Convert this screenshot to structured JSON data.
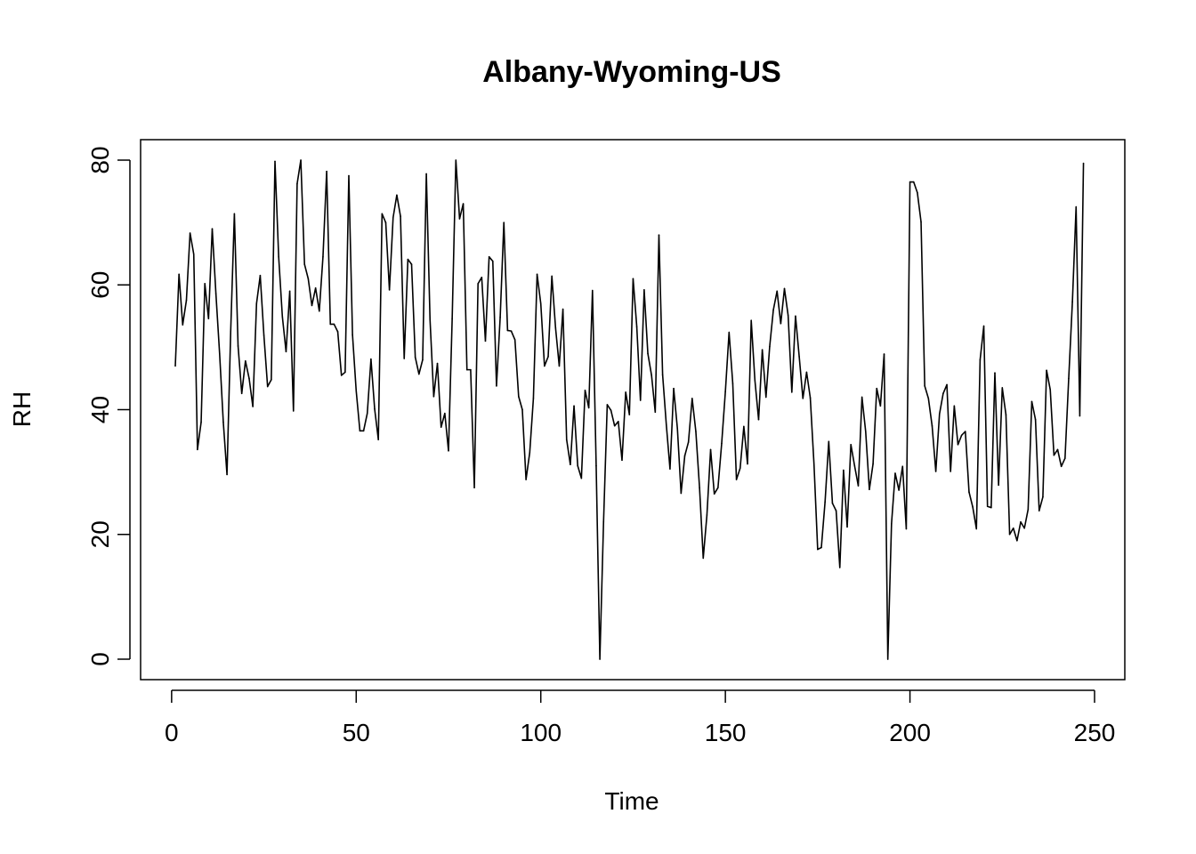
{
  "chart_data": {
    "type": "line",
    "title": "Albany-Wyoming-US",
    "xlabel": "Time",
    "ylabel": "RH",
    "xlim": [
      1,
      248
    ],
    "ylim": [
      0,
      80
    ],
    "x_ticks": [
      0,
      50,
      100,
      150,
      200,
      250
    ],
    "y_ticks": [
      0,
      20,
      40,
      60,
      80
    ],
    "grid": false,
    "legend": "none",
    "series": [
      {
        "x_start": 1,
        "values": [
          47,
          61.7,
          53.6,
          57.5,
          68.3,
          64.9,
          33.6,
          38,
          60.2,
          54.6,
          69,
          58.6,
          49,
          38,
          29.6,
          52.5,
          71.4,
          50.2,
          42.6,
          47.8,
          45,
          40.5,
          57,
          61.5,
          51.9,
          43.7,
          44.8,
          79.8,
          64.5,
          54.9,
          49.3,
          59,
          39.8,
          76.2,
          80,
          63.3,
          61,
          56.7,
          59.5,
          55.8,
          64.5,
          78.2,
          53.7,
          53.7,
          52.5,
          45.5,
          46,
          77.5,
          52,
          43,
          36.6,
          36.6,
          39.4,
          48.1,
          40.1,
          35.2,
          71.4,
          70,
          59.2,
          70.8,
          74.4,
          71,
          48.2,
          64.1,
          63.3,
          48.4,
          45.7,
          48,
          77.8,
          54.4,
          42.1,
          47.4,
          37.2,
          39.4,
          33.4,
          54.6,
          80,
          70.6,
          73,
          46.4,
          46.4,
          27.5,
          60.2,
          61.2,
          51,
          64.5,
          63.8,
          43.8,
          54.8,
          70,
          52.7,
          52.6,
          51.2,
          42.1,
          40,
          28.8,
          33.1,
          41.8,
          61.7,
          57,
          47,
          48.5,
          61.4,
          53.1,
          47,
          56.1,
          35.2,
          31.2,
          40.6,
          31,
          29,
          43.1,
          40.3,
          59.1,
          31,
          0,
          22,
          40.8,
          39.9,
          37.4,
          38.1,
          31.9,
          42.8,
          39.2,
          61,
          53.3,
          41.5,
          59.2,
          49,
          45.5,
          39.6,
          68,
          45.6,
          37.6,
          30.5,
          43.4,
          37,
          26.6,
          32.6,
          34.8,
          41.8,
          36.5,
          27.5,
          16.2,
          23.1,
          33.6,
          26.5,
          27.5,
          34.6,
          42.9,
          52.4,
          44.2,
          28.8,
          30.6,
          37.3,
          31.3,
          54.3,
          44.7,
          38.4,
          49.6,
          42,
          50.1,
          56,
          59,
          53.8,
          59.4,
          55.1,
          42.8,
          55,
          48.5,
          41.8,
          46,
          41.9,
          31.3,
          17.6,
          17.9,
          25.2,
          34.9,
          25,
          23.8,
          14.7,
          30.3,
          21.2,
          34.4,
          31,
          27.8,
          42,
          36.5,
          27.2,
          31.3,
          43.4,
          40.6,
          48.9,
          0,
          21.7,
          29.8,
          27.1,
          30.9,
          20.9,
          76.5,
          76.5,
          74.8,
          70.1,
          43.8,
          41.8,
          37.4,
          30.1,
          39.3,
          42.6,
          44,
          30.1,
          40.6,
          34.4,
          35.9,
          36.5,
          26.8,
          24.4,
          20.9,
          48,
          53.4,
          24.5,
          24.3,
          45.9,
          27.9,
          43.5,
          39.2,
          20,
          21,
          19,
          22,
          21,
          24,
          41.3,
          38.4,
          23.8,
          26,
          46.3,
          43.2,
          32.7,
          33.6,
          30.9,
          32.2,
          45,
          57.3,
          72.5,
          39,
          79.5
        ]
      }
    ]
  }
}
